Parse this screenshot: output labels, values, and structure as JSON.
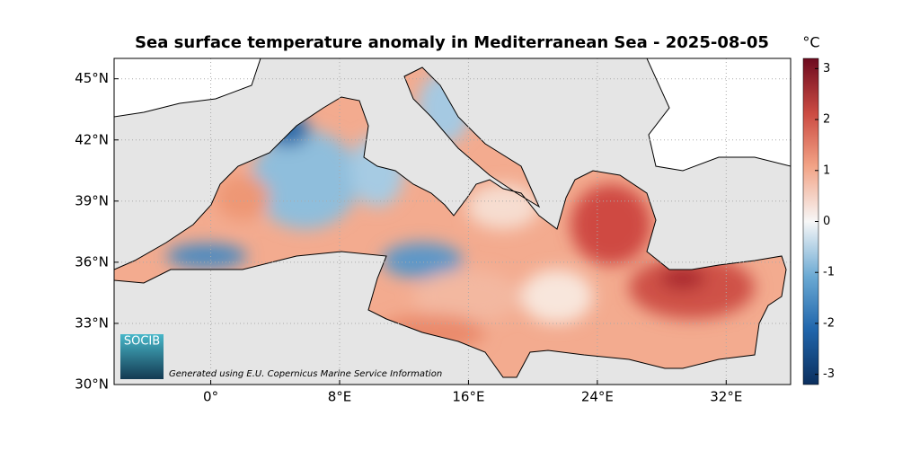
{
  "map": {
    "title": "Sea surface temperature anomaly in Mediterranean Sea - 2025-08-05",
    "xlim": [
      -6,
      36
    ],
    "ylim": [
      30,
      46
    ],
    "xticks": [
      {
        "value": 0,
        "label": "0°"
      },
      {
        "value": 8,
        "label": "8°E"
      },
      {
        "value": 16,
        "label": "16°E"
      },
      {
        "value": 24,
        "label": "24°E"
      },
      {
        "value": 32,
        "label": "32°E"
      }
    ],
    "yticks": [
      {
        "value": 30,
        "label": "30°N"
      },
      {
        "value": 33,
        "label": "33°N"
      },
      {
        "value": 36,
        "label": "36°N"
      },
      {
        "value": 39,
        "label": "39°N"
      },
      {
        "value": 42,
        "label": "42°N"
      },
      {
        "value": 45,
        "label": "45°N"
      }
    ],
    "grid": true,
    "colorbar": {
      "label": "°C",
      "lim": [
        -3.2,
        3.2
      ],
      "ticks": [
        -3,
        -2,
        -1,
        0,
        1,
        2,
        3
      ]
    },
    "logo": "SOCIB",
    "credit": "Generated using E.U. Copernicus Marine Service Information"
  }
}
